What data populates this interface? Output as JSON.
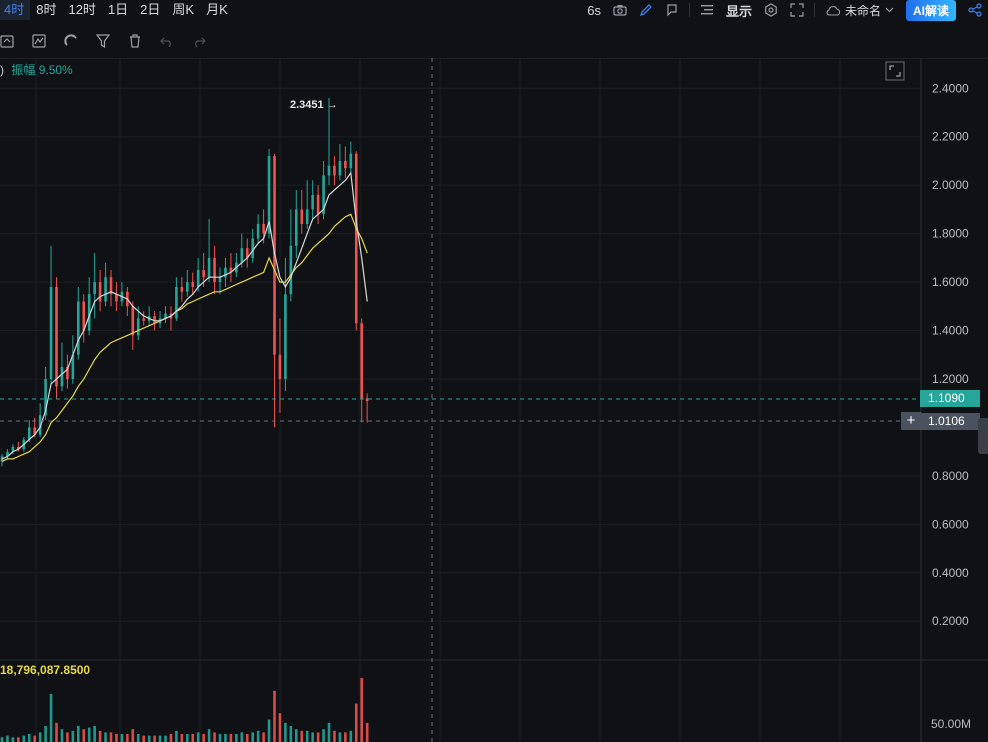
{
  "toolbar": {
    "intervals": [
      "4时",
      "8时",
      "12时",
      "1日",
      "2日",
      "周K",
      "月K"
    ],
    "active_interval": "4时",
    "countdown": "6s",
    "display_label": "显示",
    "layout_name": "未命名",
    "ai_label": "AI解读"
  },
  "info": {
    "paren": ")",
    "amplitude_label": "振幅",
    "amplitude_value": "9.50%"
  },
  "volume": {
    "value": "18,796,087.8500",
    "axis_label": "50.00M"
  },
  "price_tags": {
    "last": "1.1090",
    "crosshair": "1.0106"
  },
  "annotations": {
    "peak": "2.3451"
  },
  "colors": {
    "up": "#26a69a",
    "down": "#ef5350",
    "ma_fast": "#d9d9d9",
    "ma_slow": "#e6d84a",
    "last_tag": "#26a69a",
    "cross_tag": "#4a5260"
  },
  "chart_data": {
    "type": "candlestick",
    "yaxis_ticks": [
      "2.4000",
      "2.2000",
      "2.0000",
      "1.8000",
      "1.6000",
      "1.4000",
      "1.2000",
      "0.8000",
      "0.6000",
      "0.4000",
      "0.2000"
    ],
    "ylim": [
      0.04,
      2.525
    ],
    "candles": [
      [
        0.86,
        0.88,
        0.84,
        0.89
      ],
      [
        0.88,
        0.9,
        0.87,
        0.91
      ],
      [
        0.9,
        0.92,
        0.89,
        0.93
      ],
      [
        0.92,
        0.91,
        0.9,
        0.94
      ],
      [
        0.91,
        0.95,
        0.9,
        0.96
      ],
      [
        0.95,
        1.0,
        0.94,
        1.03
      ],
      [
        1.0,
        0.97,
        0.96,
        1.04
      ],
      [
        0.97,
        1.05,
        0.96,
        1.1
      ],
      [
        1.05,
        1.2,
        1.03,
        1.25
      ],
      [
        1.2,
        1.58,
        1.18,
        1.75
      ],
      [
        1.58,
        1.17,
        1.12,
        1.62
      ],
      [
        1.17,
        1.25,
        1.15,
        1.35
      ],
      [
        1.25,
        1.2,
        1.16,
        1.3
      ],
      [
        1.2,
        1.3,
        1.18,
        1.38
      ],
      [
        1.3,
        1.52,
        1.28,
        1.58
      ],
      [
        1.52,
        1.4,
        1.35,
        1.55
      ],
      [
        1.4,
        1.55,
        1.38,
        1.62
      ],
      [
        1.55,
        1.6,
        1.45,
        1.72
      ],
      [
        1.6,
        1.52,
        1.48,
        1.65
      ],
      [
        1.52,
        1.62,
        1.5,
        1.68
      ],
      [
        1.62,
        1.55,
        1.5,
        1.65
      ],
      [
        1.55,
        1.52,
        1.48,
        1.6
      ],
      [
        1.52,
        1.56,
        1.5,
        1.6
      ],
      [
        1.56,
        1.5,
        1.46,
        1.58
      ],
      [
        1.5,
        1.38,
        1.32,
        1.52
      ],
      [
        1.38,
        1.45,
        1.36,
        1.5
      ],
      [
        1.45,
        1.44,
        1.42,
        1.48
      ],
      [
        1.44,
        1.46,
        1.42,
        1.5
      ],
      [
        1.46,
        1.43,
        1.4,
        1.48
      ],
      [
        1.43,
        1.45,
        1.41,
        1.48
      ],
      [
        1.45,
        1.47,
        1.43,
        1.5
      ],
      [
        1.47,
        1.45,
        1.4,
        1.5
      ],
      [
        1.45,
        1.58,
        1.44,
        1.62
      ],
      [
        1.58,
        1.56,
        1.52,
        1.62
      ],
      [
        1.56,
        1.6,
        1.54,
        1.65
      ],
      [
        1.6,
        1.58,
        1.55,
        1.64
      ],
      [
        1.58,
        1.65,
        1.56,
        1.7
      ],
      [
        1.65,
        1.62,
        1.58,
        1.72
      ],
      [
        1.62,
        1.7,
        1.6,
        1.86
      ],
      [
        1.7,
        1.6,
        1.55,
        1.75
      ],
      [
        1.6,
        1.62,
        1.55,
        1.66
      ],
      [
        1.62,
        1.66,
        1.58,
        1.7
      ],
      [
        1.66,
        1.64,
        1.6,
        1.72
      ],
      [
        1.64,
        1.68,
        1.62,
        1.72
      ],
      [
        1.68,
        1.74,
        1.66,
        1.8
      ],
      [
        1.74,
        1.7,
        1.66,
        1.78
      ],
      [
        1.7,
        1.78,
        1.68,
        1.82
      ],
      [
        1.78,
        1.84,
        1.76,
        1.88
      ],
      [
        1.84,
        1.8,
        1.76,
        1.9
      ],
      [
        1.8,
        2.12,
        1.78,
        2.15
      ],
      [
        2.12,
        1.3,
        1.0,
        2.13
      ],
      [
        1.3,
        1.2,
        1.06,
        1.45
      ],
      [
        1.2,
        1.55,
        1.15,
        1.7
      ],
      [
        1.55,
        1.75,
        1.52,
        1.9
      ],
      [
        1.75,
        1.9,
        1.7,
        1.98
      ],
      [
        1.9,
        1.84,
        1.8,
        1.98
      ],
      [
        1.84,
        1.9,
        1.82,
        2.02
      ],
      [
        1.9,
        1.96,
        1.86,
        2.02
      ],
      [
        1.96,
        1.88,
        1.84,
        2.0
      ],
      [
        1.88,
        2.04,
        1.86,
        2.1
      ],
      [
        2.04,
        2.08,
        2.0,
        2.35
      ],
      [
        2.08,
        2.04,
        2.0,
        2.12
      ],
      [
        2.04,
        2.1,
        2.02,
        2.17
      ],
      [
        2.1,
        2.07,
        2.03,
        2.16
      ],
      [
        2.07,
        2.13,
        2.05,
        2.18
      ],
      [
        2.13,
        1.43,
        1.4,
        2.14
      ],
      [
        1.43,
        1.12,
        1.02,
        1.45
      ],
      [
        1.12,
        1.109,
        1.02,
        1.14
      ]
    ],
    "ma_fast": [
      0.87,
      0.88,
      0.9,
      0.91,
      0.93,
      0.95,
      0.97,
      1.0,
      1.07,
      1.18,
      1.2,
      1.22,
      1.24,
      1.3,
      1.36,
      1.4,
      1.46,
      1.52,
      1.54,
      1.55,
      1.56,
      1.55,
      1.54,
      1.53,
      1.5,
      1.48,
      1.46,
      1.45,
      1.44,
      1.44,
      1.45,
      1.46,
      1.48,
      1.5,
      1.53,
      1.55,
      1.58,
      1.6,
      1.62,
      1.62,
      1.62,
      1.63,
      1.64,
      1.66,
      1.68,
      1.7,
      1.73,
      1.76,
      1.78,
      1.85,
      1.72,
      1.62,
      1.58,
      1.62,
      1.68,
      1.74,
      1.8,
      1.86,
      1.88,
      1.9,
      1.96,
      1.98,
      2.0,
      2.02,
      2.05,
      1.85,
      1.7,
      1.52
    ],
    "ma_slow": [
      0.86,
      0.87,
      0.87,
      0.88,
      0.89,
      0.9,
      0.92,
      0.94,
      0.97,
      1.02,
      1.04,
      1.07,
      1.1,
      1.13,
      1.17,
      1.2,
      1.24,
      1.28,
      1.31,
      1.33,
      1.35,
      1.36,
      1.37,
      1.38,
      1.39,
      1.4,
      1.41,
      1.42,
      1.43,
      1.44,
      1.45,
      1.46,
      1.48,
      1.49,
      1.51,
      1.52,
      1.53,
      1.54,
      1.55,
      1.56,
      1.56,
      1.57,
      1.58,
      1.59,
      1.6,
      1.61,
      1.62,
      1.63,
      1.64,
      1.7,
      1.65,
      1.6,
      1.6,
      1.63,
      1.66,
      1.68,
      1.71,
      1.74,
      1.76,
      1.78,
      1.8,
      1.83,
      1.85,
      1.87,
      1.88,
      1.82,
      1.78,
      1.72
    ],
    "volumes": [
      3,
      4,
      3,
      3,
      4,
      5,
      4,
      6,
      10,
      30,
      12,
      8,
      6,
      7,
      10,
      8,
      9,
      10,
      7,
      6,
      6,
      5,
      5,
      5,
      8,
      5,
      4,
      4,
      4,
      4,
      4,
      5,
      7,
      5,
      5,
      5,
      6,
      5,
      8,
      6,
      5,
      5,
      5,
      5,
      6,
      5,
      6,
      7,
      6,
      14,
      32,
      18,
      12,
      10,
      8,
      7,
      7,
      6,
      6,
      8,
      12,
      7,
      6,
      6,
      7,
      24,
      40,
      12
    ]
  }
}
